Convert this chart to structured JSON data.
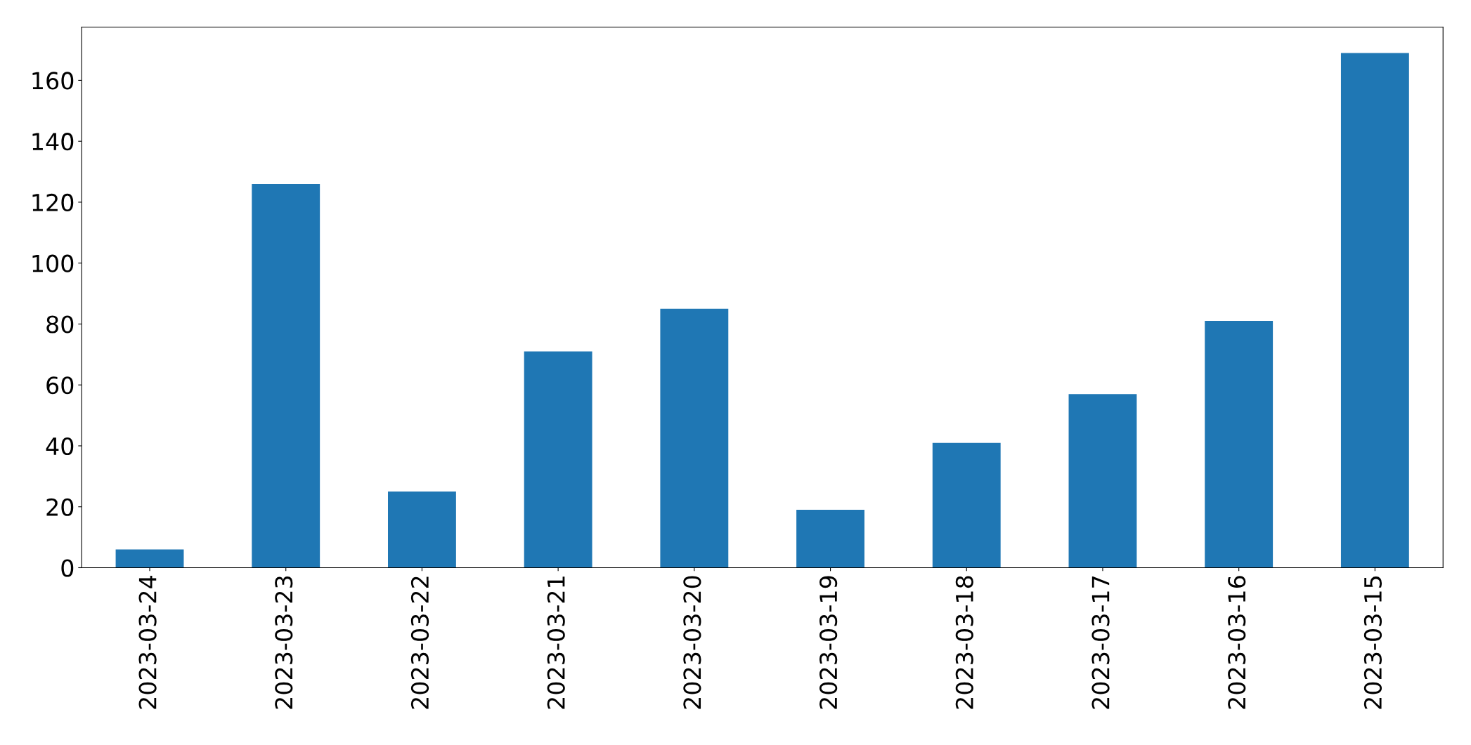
{
  "chart_data": {
    "type": "bar",
    "categories": [
      "2023-03-24",
      "2023-03-23",
      "2023-03-22",
      "2023-03-21",
      "2023-03-20",
      "2023-03-19",
      "2023-03-18",
      "2023-03-17",
      "2023-03-16",
      "2023-03-15"
    ],
    "values": [
      6,
      126,
      25,
      71,
      85,
      19,
      41,
      57,
      81,
      169
    ],
    "color": "#1f77b4",
    "ylim": [
      0,
      177.45
    ],
    "yticks": [
      0,
      20,
      40,
      60,
      80,
      100,
      120,
      140,
      160
    ],
    "grid": false
  }
}
